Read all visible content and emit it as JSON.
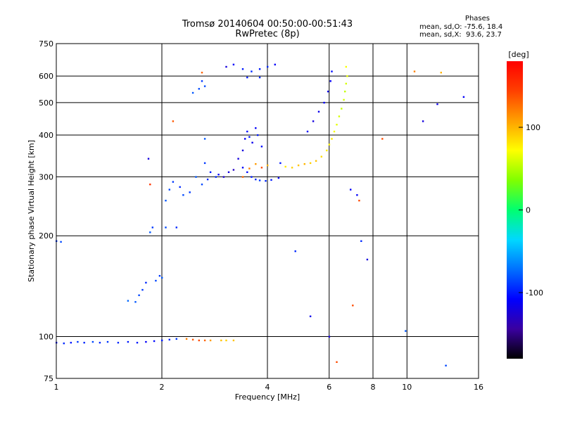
{
  "header": {
    "title_line1": "Tromsø 20140604 00:50:00-00:51:43",
    "title_line2": "RwPretec (8p)"
  },
  "phases_info": {
    "heading": "Phases",
    "mean_sd_o": "mean, sd,O: -75.6, 18.4",
    "mean_sd_x": "mean, sd,X:  93.6, 23.7"
  },
  "chart_data": {
    "type": "scatter",
    "xlabel": "Frequency [MHz]",
    "ylabel": "Stationary phase Virtual Height [km]",
    "x_scale": "log",
    "y_scale": "log",
    "xlim": [
      1,
      16
    ],
    "ylim": [
      75,
      750
    ],
    "x_ticks": [
      1,
      2,
      4,
      6,
      8,
      10,
      16
    ],
    "y_ticks": [
      75,
      100,
      200,
      300,
      400,
      500,
      600,
      750
    ],
    "grid": true,
    "colorbar": {
      "label": "[deg]",
      "range": [
        -180,
        180
      ],
      "ticks": [
        100,
        0,
        -100
      ],
      "colormap": [
        "#000000",
        "#3a00a0",
        "#0000ff",
        "#0070ff",
        "#00d8ff",
        "#00ff70",
        "#80ff00",
        "#ffff00",
        "#ffa000",
        "#ff4000",
        "#ff0000"
      ]
    },
    "series": [
      {
        "points": [
          [
            1.0,
            96,
            -100
          ],
          [
            1.05,
            95.5,
            -95
          ],
          [
            1.1,
            96,
            -100
          ],
          [
            1.15,
            96.5,
            -90
          ],
          [
            1.2,
            96,
            -95
          ],
          [
            1.27,
            96.5,
            -85
          ],
          [
            1.33,
            96,
            -95
          ],
          [
            1.4,
            96.5,
            -90
          ],
          [
            1.5,
            96,
            -95
          ],
          [
            1.6,
            96.5,
            -100
          ],
          [
            1.7,
            96,
            -100
          ],
          [
            1.8,
            96.5,
            -110
          ],
          [
            1.9,
            97,
            -105
          ],
          [
            2.0,
            97.5,
            -100
          ],
          [
            2.1,
            98,
            -95
          ],
          [
            2.2,
            98.5,
            -90
          ],
          [
            2.35,
            98.5,
            120
          ],
          [
            2.45,
            98,
            135
          ],
          [
            2.55,
            97.5,
            140
          ],
          [
            2.65,
            97.5,
            130
          ],
          [
            2.75,
            97.5,
            110
          ],
          [
            2.95,
            97.5,
            95
          ],
          [
            3.05,
            97.5,
            90
          ],
          [
            3.2,
            97.5,
            95
          ],
          [
            1.0,
            193,
            -90
          ],
          [
            1.03,
            192,
            -85
          ],
          [
            1.6,
            128,
            -75
          ],
          [
            1.68,
            127,
            -80
          ],
          [
            1.72,
            133,
            -85
          ],
          [
            1.76,
            138,
            -90
          ],
          [
            1.8,
            145,
            -95
          ],
          [
            1.92,
            147,
            -85
          ],
          [
            1.97,
            152,
            -90
          ],
          [
            2.0,
            150,
            -80
          ],
          [
            1.85,
            205,
            -80
          ],
          [
            1.88,
            212,
            -90
          ],
          [
            2.05,
            212,
            -85
          ],
          [
            2.2,
            212,
            -95
          ],
          [
            1.83,
            340,
            -120
          ],
          [
            1.85,
            285,
            150
          ],
          [
            2.05,
            255,
            -80
          ],
          [
            2.1,
            275,
            -85
          ],
          [
            2.15,
            290,
            -90
          ],
          [
            2.25,
            280,
            -95
          ],
          [
            2.3,
            265,
            -85
          ],
          [
            2.4,
            270,
            -90
          ],
          [
            2.5,
            300,
            -80
          ],
          [
            2.6,
            285,
            -85
          ],
          [
            2.7,
            295,
            -95
          ],
          [
            2.65,
            330,
            -90
          ],
          [
            2.75,
            310,
            -100
          ],
          [
            2.85,
            300,
            -95
          ],
          [
            2.9,
            305,
            -110
          ],
          [
            3.0,
            300,
            -125
          ],
          [
            3.1,
            310,
            -120
          ],
          [
            3.2,
            315,
            -130
          ],
          [
            3.3,
            340,
            -120
          ],
          [
            3.4,
            320,
            -110
          ],
          [
            3.5,
            310,
            -105
          ],
          [
            3.6,
            300,
            -100
          ],
          [
            3.7,
            295,
            -95
          ],
          [
            3.8,
            293,
            -90
          ],
          [
            3.95,
            292,
            -95
          ],
          [
            4.1,
            294,
            -100
          ],
          [
            4.3,
            298,
            -110
          ],
          [
            3.4,
            360,
            -120
          ],
          [
            3.45,
            390,
            -110
          ],
          [
            3.5,
            410,
            -105
          ],
          [
            3.55,
            395,
            -100
          ],
          [
            3.62,
            380,
            -115
          ],
          [
            3.7,
            420,
            -110
          ],
          [
            3.75,
            400,
            -100
          ],
          [
            3.85,
            370,
            -105
          ],
          [
            3.4,
            300,
            130
          ],
          [
            3.55,
            318,
            120
          ],
          [
            3.7,
            328,
            110
          ],
          [
            3.85,
            320,
            140
          ],
          [
            4.0,
            325,
            100
          ],
          [
            4.35,
            330,
            -100
          ],
          [
            4.5,
            322,
            80
          ],
          [
            4.7,
            320,
            90
          ],
          [
            4.9,
            325,
            95
          ],
          [
            5.1,
            328,
            100
          ],
          [
            5.3,
            330,
            90
          ],
          [
            5.5,
            335,
            95
          ],
          [
            5.7,
            345,
            85
          ],
          [
            5.9,
            360,
            80
          ],
          [
            6.0,
            375,
            75
          ],
          [
            6.1,
            390,
            80
          ],
          [
            6.2,
            410,
            70
          ],
          [
            6.3,
            430,
            65
          ],
          [
            6.4,
            455,
            60
          ],
          [
            6.5,
            480,
            55
          ],
          [
            6.6,
            510,
            60
          ],
          [
            6.65,
            540,
            55
          ],
          [
            6.7,
            570,
            60
          ],
          [
            6.75,
            600,
            65
          ],
          [
            6.7,
            640,
            70
          ],
          [
            5.4,
            440,
            -120
          ],
          [
            5.6,
            470,
            -115
          ],
          [
            5.8,
            500,
            -110
          ],
          [
            5.95,
            540,
            -115
          ],
          [
            6.05,
            580,
            -110
          ],
          [
            6.1,
            620,
            -105
          ],
          [
            5.2,
            410,
            -110
          ],
          [
            2.45,
            535,
            -80
          ],
          [
            2.55,
            550,
            -85
          ],
          [
            2.6,
            580,
            -90
          ],
          [
            2.65,
            560,
            -85
          ],
          [
            3.05,
            640,
            -120
          ],
          [
            3.2,
            650,
            -110
          ],
          [
            3.4,
            630,
            -100
          ],
          [
            3.6,
            620,
            -95
          ],
          [
            3.8,
            630,
            -100
          ],
          [
            4.0,
            640,
            -95
          ],
          [
            4.2,
            650,
            -110
          ],
          [
            3.5,
            595,
            -100
          ],
          [
            3.8,
            595,
            -95
          ],
          [
            2.6,
            615,
            130
          ],
          [
            2.15,
            440,
            135
          ],
          [
            2.65,
            390,
            -80
          ],
          [
            6.0,
            100,
            -120
          ],
          [
            6.3,
            84,
            140
          ],
          [
            7.0,
            124,
            140
          ],
          [
            7.7,
            170,
            -120
          ],
          [
            7.4,
            193,
            -95
          ],
          [
            6.9,
            275,
            -110
          ],
          [
            7.2,
            265,
            -110
          ],
          [
            7.3,
            255,
            140
          ],
          [
            9.9,
            104,
            -80
          ],
          [
            8.5,
            390,
            140
          ],
          [
            10.5,
            620,
            120
          ],
          [
            12.5,
            615,
            100
          ],
          [
            12.9,
            82,
            -85
          ],
          [
            14.5,
            520,
            -110
          ],
          [
            11.1,
            440,
            -120
          ],
          [
            12.2,
            495,
            -115
          ],
          [
            5.3,
            115,
            -115
          ],
          [
            4.8,
            180,
            -95
          ]
        ]
      }
    ]
  }
}
